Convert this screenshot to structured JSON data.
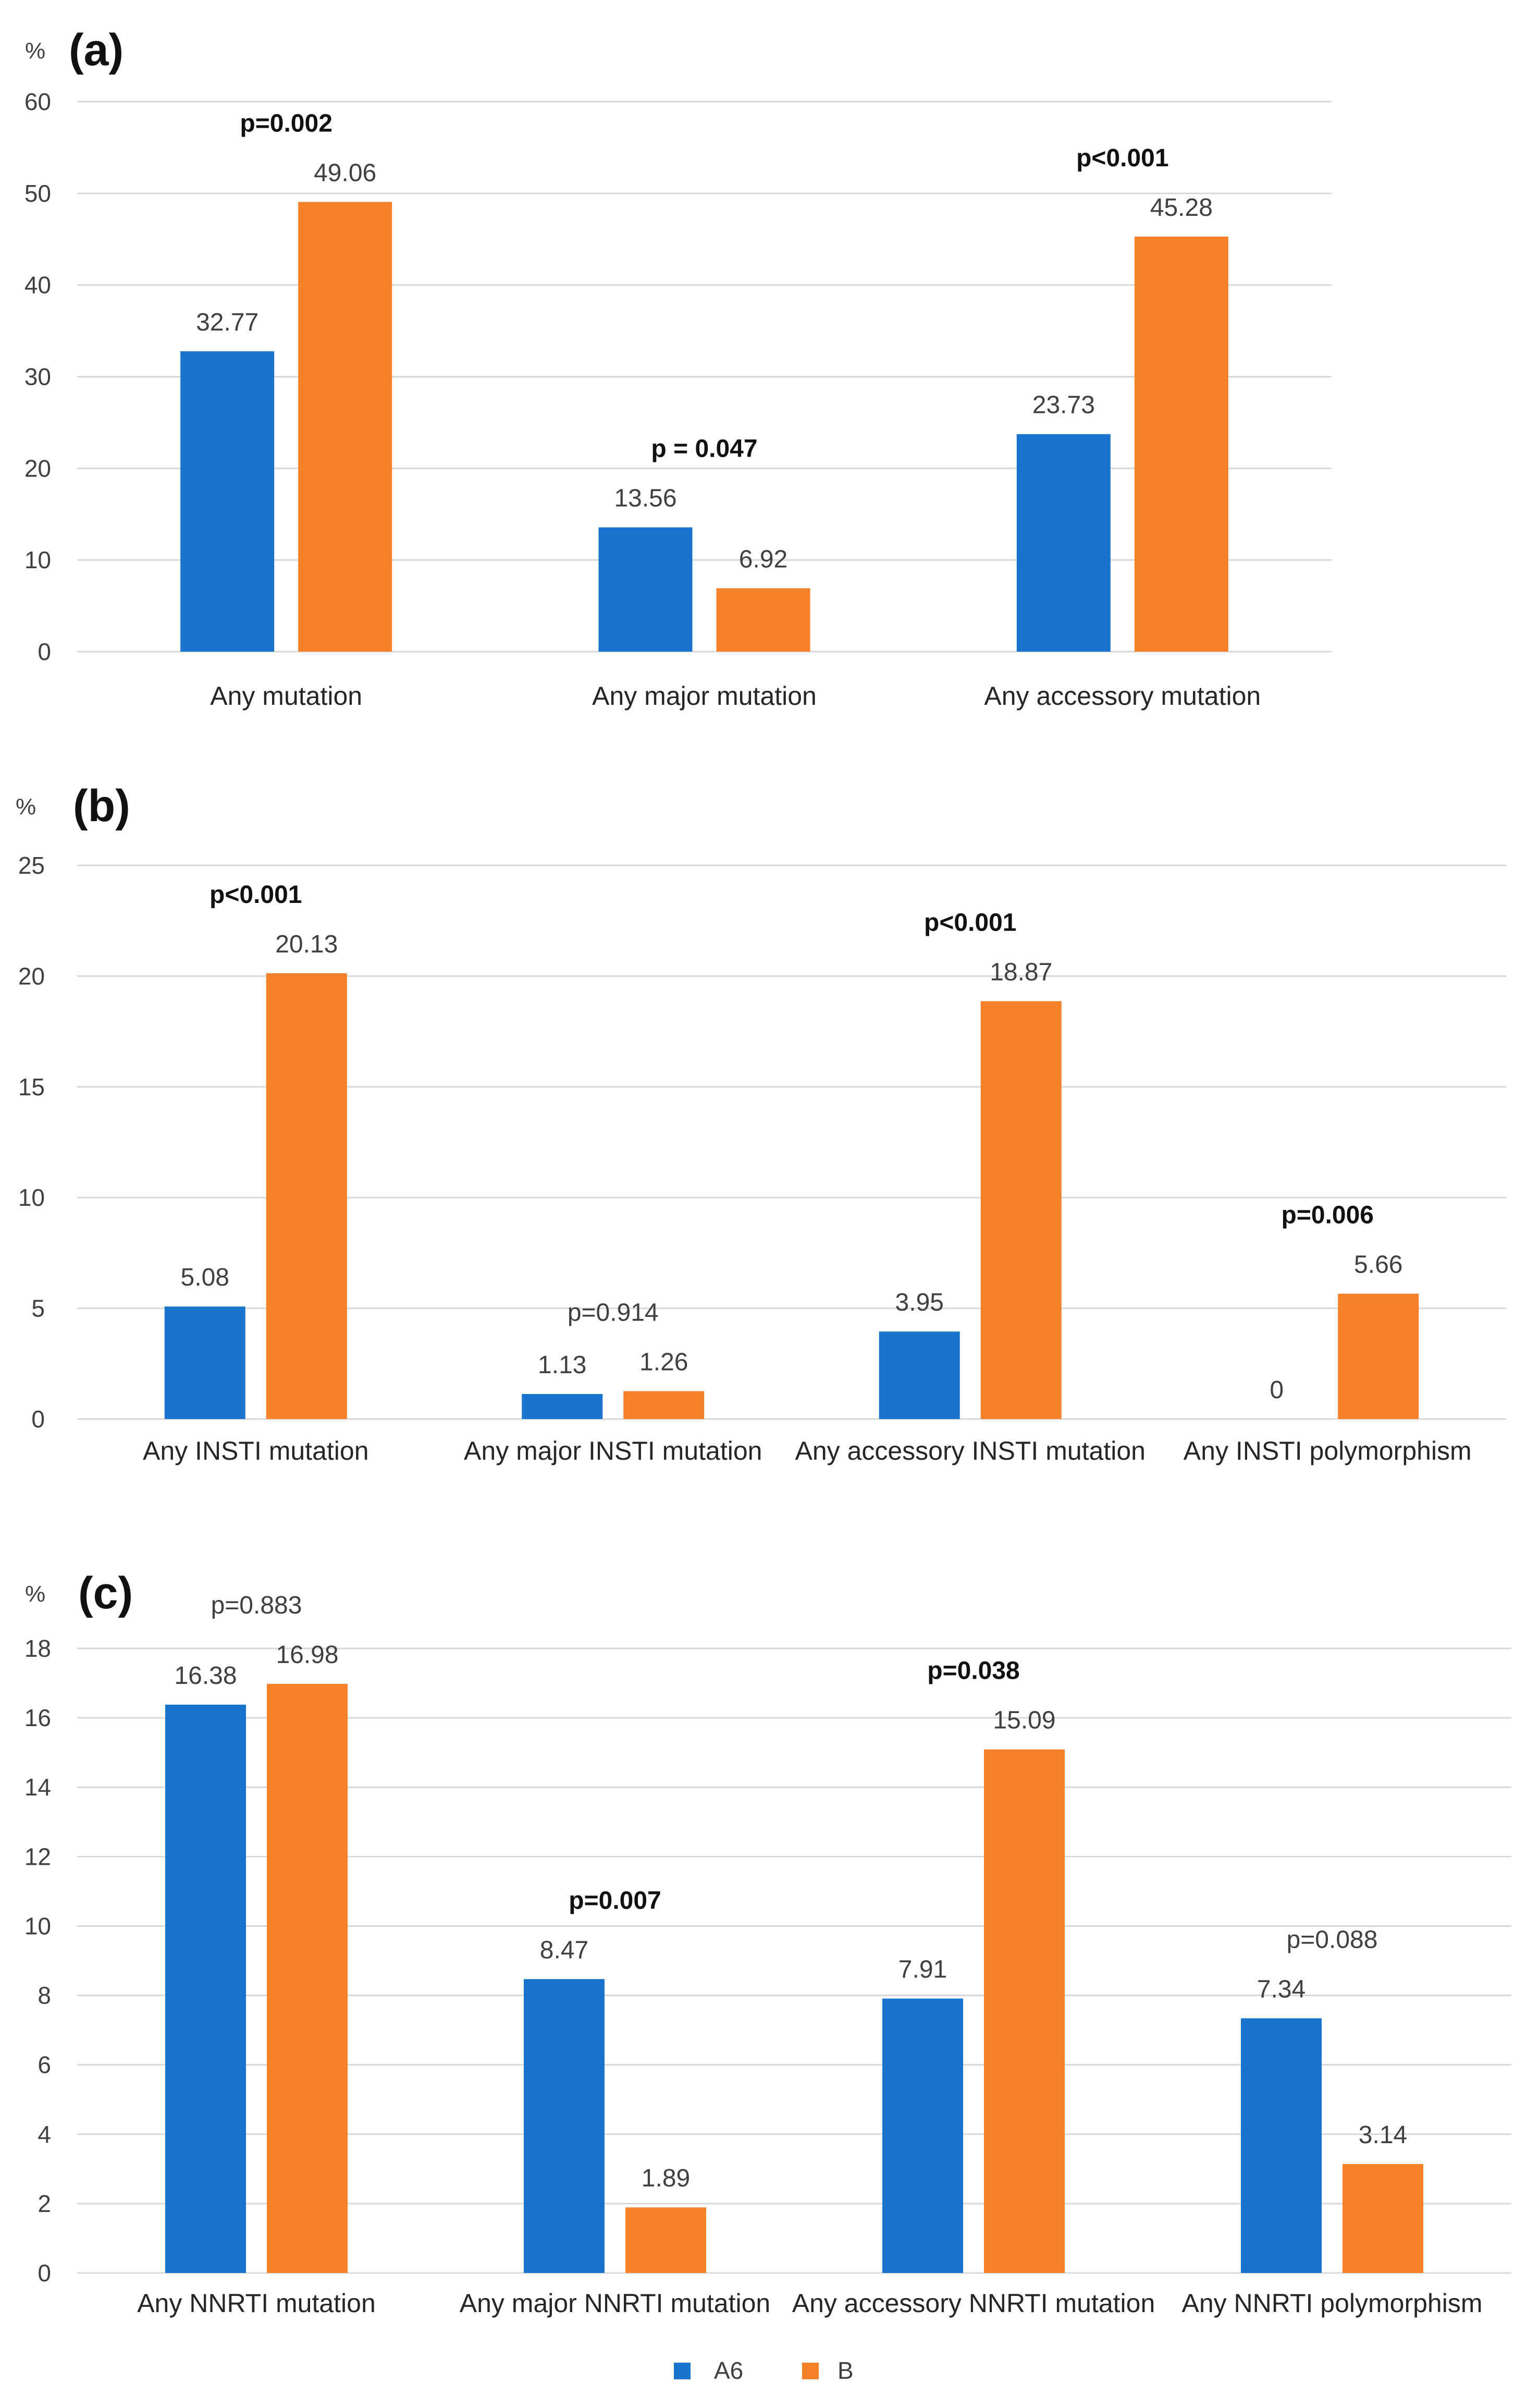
{
  "colors": {
    "A6": "#1874CD",
    "B": "#F5822A",
    "grid": "#D9D9D9",
    "text": "#404040"
  },
  "chart_data": [
    {
      "type": "bar",
      "panel_label": "(a)",
      "unit_label": "%",
      "ylim": [
        0,
        60
      ],
      "yticks": [
        0,
        10,
        20,
        30,
        40,
        50,
        60
      ],
      "categories": [
        "Any mutation",
        "Any major mutation",
        "Any accessory mutation"
      ],
      "series": [
        {
          "name": "A6",
          "values": [
            32.77,
            13.56,
            23.73
          ],
          "labels": [
            "32.77",
            "13.56",
            "23.73"
          ]
        },
        {
          "name": "B",
          "values": [
            49.06,
            6.92,
            45.28
          ],
          "labels": [
            "49.06",
            "6.92",
            "45.28"
          ]
        }
      ],
      "pvalues": [
        {
          "text": "p=0.002",
          "bold": true
        },
        {
          "text": "p = 0.047",
          "bold": true
        },
        {
          "text": "p<0.001",
          "bold": true
        }
      ]
    },
    {
      "type": "bar",
      "panel_label": "(b)",
      "unit_label": "%",
      "ylim": [
        0,
        25
      ],
      "yticks": [
        0,
        5,
        10,
        15,
        20,
        25
      ],
      "categories": [
        "Any INSTI mutation",
        "Any major INSTI mutation",
        "Any accessory INSTI mutation",
        "Any INSTI polymorphism"
      ],
      "series": [
        {
          "name": "A6",
          "values": [
            5.08,
            1.13,
            3.95,
            0
          ],
          "labels": [
            "5.08",
            "1.13",
            "3.95",
            "0"
          ]
        },
        {
          "name": "B",
          "values": [
            20.13,
            1.26,
            18.87,
            5.66
          ],
          "labels": [
            "20.13",
            "1.26",
            "18.87",
            "5.66"
          ]
        }
      ],
      "pvalues": [
        {
          "text": "p<0.001",
          "bold": true
        },
        {
          "text": "p=0.914",
          "bold": false
        },
        {
          "text": "p<0.001",
          "bold": true
        },
        {
          "text": "p=0.006",
          "bold": true
        }
      ]
    },
    {
      "type": "bar",
      "panel_label": "(c)",
      "unit_label": "%",
      "ylim": [
        0,
        18
      ],
      "yticks": [
        0,
        2,
        4,
        6,
        8,
        10,
        12,
        14,
        16,
        18
      ],
      "categories": [
        "Any NNRTI mutation",
        "Any major NNRTI mutation",
        "Any accessory NNRTI mutation",
        "Any NNRTI polymorphism"
      ],
      "series": [
        {
          "name": "A6",
          "values": [
            16.38,
            8.47,
            7.91,
            7.34
          ],
          "labels": [
            "16.38",
            "8.47",
            "7.91",
            "7.34"
          ]
        },
        {
          "name": "B",
          "values": [
            16.98,
            1.89,
            15.09,
            3.14
          ],
          "labels": [
            "16.98",
            "1.89",
            "15.09",
            "3.14"
          ]
        }
      ],
      "pvalues": [
        {
          "text": "p=0.883",
          "bold": false
        },
        {
          "text": "p=0.007",
          "bold": true
        },
        {
          "text": "p=0.038",
          "bold": true
        },
        {
          "text": "p=0.088",
          "bold": false
        }
      ]
    }
  ],
  "legend": {
    "position": "bottom-center",
    "entries": [
      {
        "name": "A6",
        "color_key": "A6"
      },
      {
        "name": "B",
        "color_key": "B"
      }
    ]
  }
}
